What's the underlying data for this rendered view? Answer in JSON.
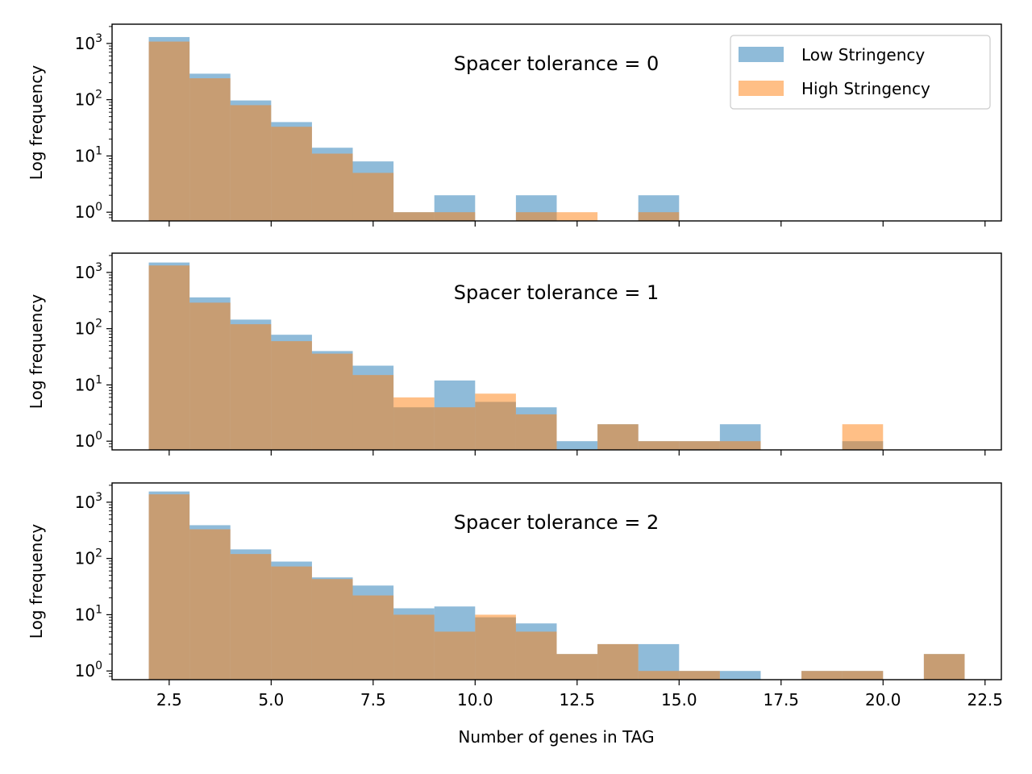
{
  "chart_data": {
    "type": "bar",
    "xlabel": "Number of genes in TAG",
    "ylabel": "Log frequency",
    "xlim": [
      1.1,
      22.9
    ],
    "x_ticks": [
      2.5,
      5.0,
      7.5,
      10.0,
      12.5,
      15.0,
      17.5,
      20.0,
      22.5
    ],
    "x_tick_labels": [
      "2.5",
      "5.0",
      "7.5",
      "10.0",
      "12.5",
      "15.0",
      "17.5",
      "20.0",
      "22.5"
    ],
    "y_scale": "log",
    "ylim": [
      0.7,
      2200
    ],
    "y_ticks": [
      1,
      10,
      100,
      1000
    ],
    "y_tick_labels": [
      {
        "base": "10",
        "exp": "0"
      },
      {
        "base": "10",
        "exp": "1"
      },
      {
        "base": "10",
        "exp": "2"
      },
      {
        "base": "10",
        "exp": "3"
      }
    ],
    "bin_edges": [
      2,
      3,
      4,
      5,
      6,
      7,
      8,
      9,
      10,
      11,
      12,
      13,
      14,
      15,
      16,
      17,
      18,
      19,
      20,
      21,
      22
    ],
    "legend": {
      "placement": "top-right",
      "panel": 0
    },
    "colors": {
      "Low Stringency": "#1f77b4",
      "High Stringency": "#ff7f0e",
      "alpha": 0.5
    },
    "panels": [
      {
        "title": "Spacer tolerance = 0",
        "series": [
          {
            "name": "Low Stringency",
            "values": [
              1300,
              290,
              97,
              40,
              14,
              8,
              1,
              2,
              0,
              2,
              0,
              0,
              2,
              0,
              0,
              0,
              0,
              0,
              0,
              0
            ]
          },
          {
            "name": "High Stringency",
            "values": [
              1080,
              240,
              80,
              33,
              11,
              5,
              1,
              1,
              0,
              1,
              1,
              0,
              1,
              0,
              0,
              0,
              0,
              0,
              0,
              0
            ]
          }
        ]
      },
      {
        "title": "Spacer tolerance = 1",
        "series": [
          {
            "name": "Low Stringency",
            "values": [
              1500,
              360,
              145,
              78,
              40,
              22,
              4,
              12,
              5,
              4,
              1,
              2,
              1,
              1,
              2,
              0,
              0,
              1,
              0,
              0
            ]
          },
          {
            "name": "High Stringency",
            "values": [
              1330,
              290,
              120,
              60,
              36,
              15,
              6,
              4,
              7,
              3,
              0,
              2,
              1,
              1,
              1,
              0,
              0,
              2,
              0,
              0
            ]
          }
        ]
      },
      {
        "title": "Spacer tolerance = 2",
        "series": [
          {
            "name": "Low Stringency",
            "values": [
              1550,
              390,
              145,
              88,
              46,
              33,
              13,
              14,
              9,
              7,
              2,
              3,
              3,
              1,
              1,
              0,
              1,
              1,
              0,
              2
            ]
          },
          {
            "name": "High Stringency",
            "values": [
              1380,
              330,
              120,
              72,
              43,
              22,
              10,
              5,
              10,
              5,
              2,
              3,
              1,
              1,
              0,
              0,
              1,
              1,
              0,
              2
            ]
          }
        ]
      }
    ]
  }
}
